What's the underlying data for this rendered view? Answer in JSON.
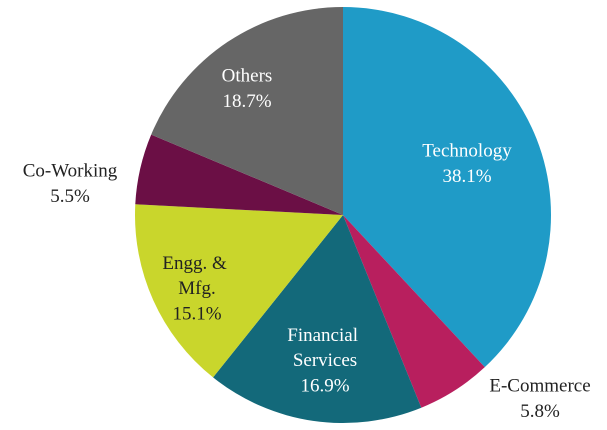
{
  "chart_data": {
    "type": "pie",
    "categories": [
      "Technology",
      "E-Commerce",
      "Financial Services",
      "Engg. & Mfg.",
      "Co-Working",
      "Others"
    ],
    "values": [
      38.1,
      5.8,
      16.9,
      15.1,
      5.5,
      18.7
    ],
    "value_labels": [
      "38.1%",
      "5.8%",
      "16.9%",
      "15.1%",
      "5.5%",
      "18.7%"
    ],
    "colors": [
      "#1f9bc7",
      "#b81f5e",
      "#13697a",
      "#c9d62c",
      "#6b0f45",
      "#666666"
    ]
  }
}
